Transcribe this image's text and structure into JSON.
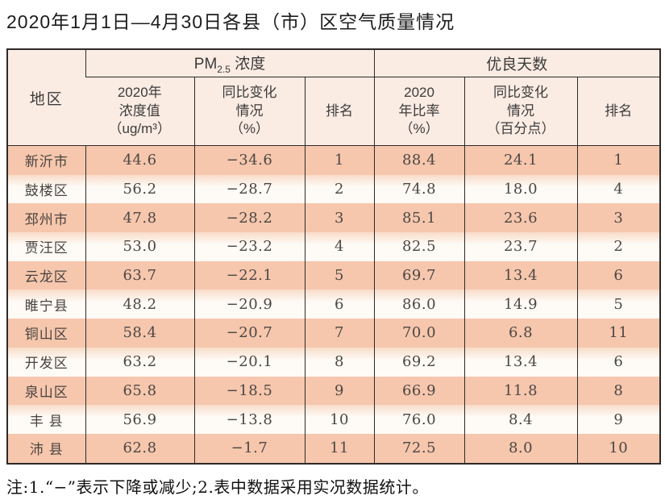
{
  "title": "2020年1月1日—4月30日各县（市）区空气质量情况",
  "colors": {
    "row_dark": "#f6c7ad",
    "row_light": "#fefaf6",
    "header_bg": "#fbece3",
    "border": "#2e2a28"
  },
  "table": {
    "corner_header": "地区",
    "groups": [
      {
        "prefix": "PM",
        "sub": "2.5",
        "suffix": " 浓度"
      },
      {
        "label": "优良天数"
      }
    ],
    "sub_headers": [
      {
        "lines": [
          "2020年",
          "浓度值",
          "（ug/m³）"
        ]
      },
      {
        "lines": [
          "同比变化",
          "情况",
          "（%）"
        ]
      },
      {
        "lines": [
          "排名"
        ]
      },
      {
        "lines": [
          "2020",
          "年比率",
          "（%）"
        ]
      },
      {
        "lines": [
          "同比变化",
          "情况",
          "（百分点）"
        ]
      },
      {
        "lines": [
          "排名"
        ]
      }
    ],
    "rows": [
      {
        "region": "新沂市",
        "pm25": "44.6",
        "pm25_change": "−34.6",
        "pm25_rank": "1",
        "days_ratio": "88.4",
        "days_change": "24.1",
        "days_rank": "1"
      },
      {
        "region": "鼓楼区",
        "pm25": "56.2",
        "pm25_change": "−28.7",
        "pm25_rank": "2",
        "days_ratio": "74.8",
        "days_change": "18.0",
        "days_rank": "4"
      },
      {
        "region": "邳州市",
        "pm25": "47.8",
        "pm25_change": "−28.2",
        "pm25_rank": "3",
        "days_ratio": "85.1",
        "days_change": "23.6",
        "days_rank": "3"
      },
      {
        "region": "贾汪区",
        "pm25": "53.0",
        "pm25_change": "−23.2",
        "pm25_rank": "4",
        "days_ratio": "82.5",
        "days_change": "23.7",
        "days_rank": "2"
      },
      {
        "region": "云龙区",
        "pm25": "63.7",
        "pm25_change": "−22.1",
        "pm25_rank": "5",
        "days_ratio": "69.7",
        "days_change": "13.4",
        "days_rank": "6"
      },
      {
        "region": "睢宁县",
        "pm25": "48.2",
        "pm25_change": "−20.9",
        "pm25_rank": "6",
        "days_ratio": "86.0",
        "days_change": "14.9",
        "days_rank": "5"
      },
      {
        "region": "铜山区",
        "pm25": "58.4",
        "pm25_change": "−20.7",
        "pm25_rank": "7",
        "days_ratio": "70.0",
        "days_change": "6.8",
        "days_rank": "11"
      },
      {
        "region": "开发区",
        "pm25": "63.2",
        "pm25_change": "−20.1",
        "pm25_rank": "8",
        "days_ratio": "69.2",
        "days_change": "13.4",
        "days_rank": "6"
      },
      {
        "region": "泉山区",
        "pm25": "65.8",
        "pm25_change": "−18.5",
        "pm25_rank": "9",
        "days_ratio": "66.9",
        "days_change": "11.8",
        "days_rank": "8"
      },
      {
        "region": "丰 县",
        "pm25": "56.9",
        "pm25_change": "−13.8",
        "pm25_rank": "10",
        "days_ratio": "76.0",
        "days_change": "8.4",
        "days_rank": "9"
      },
      {
        "region": "沛 县",
        "pm25": "62.8",
        "pm25_change": "−1.7",
        "pm25_rank": "11",
        "days_ratio": "72.5",
        "days_change": "8.0",
        "days_rank": "10"
      }
    ]
  },
  "note": "注:1.“−”表示下降或减少;2.表中数据采用实况数据统计。"
}
